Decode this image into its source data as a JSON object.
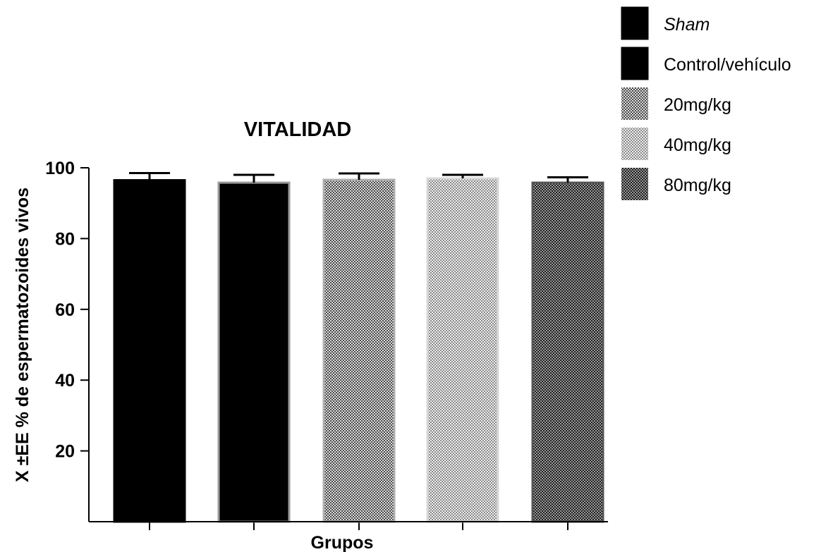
{
  "chart_data": {
    "type": "bar",
    "title": "VITALIDAD",
    "xlabel": "Grupos",
    "ylabel": "X ±EE % de espermatozoides vivos",
    "ylim": [
      0,
      100
    ],
    "yticks": [
      20,
      40,
      60,
      80,
      100
    ],
    "categories": [
      "Sham",
      "Control/vehículo",
      "20mg/kg",
      "40mg/kg",
      "80mg/kg"
    ],
    "values": [
      96.5,
      95.8,
      96.6,
      97.0,
      95.8
    ],
    "errors": [
      2.0,
      2.2,
      1.8,
      1.0,
      1.5
    ],
    "grid": false,
    "legend_position": "top-right",
    "legend": [
      {
        "label": "Sham",
        "italic": true,
        "fill": "black",
        "edge_color": "#000000"
      },
      {
        "label": "Control/vehículo",
        "italic": false,
        "fill": "black",
        "edge_color": "#9a9a9a"
      },
      {
        "label": "20mg/kg",
        "italic": false,
        "fill": "dots-medium",
        "edge_color": "#b0b0b0"
      },
      {
        "label": "40mg/kg",
        "italic": false,
        "fill": "dots-light",
        "edge_color": "#d8d8d8"
      },
      {
        "label": "80mg/kg",
        "italic": false,
        "fill": "dots-dark",
        "edge_color": "#555555"
      }
    ]
  }
}
